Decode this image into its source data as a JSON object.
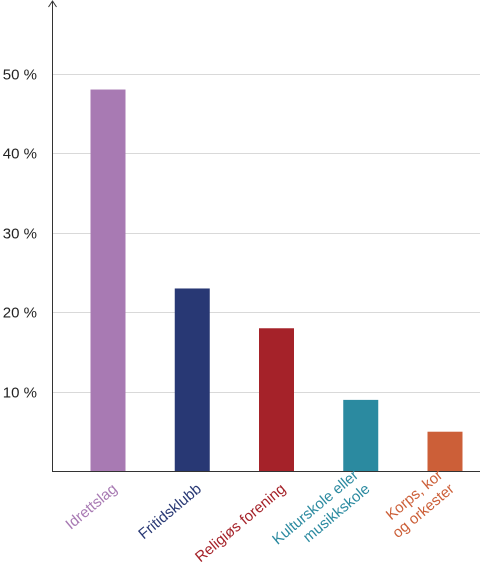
{
  "chart_data": {
    "type": "bar",
    "categories": [
      "Idrettslag",
      "Fritidsklubb",
      "Religiøs forening",
      "Kulturskole eller musikkskole",
      "Korps, kor og orkester"
    ],
    "category_label_lines": [
      [
        "Idrettslag"
      ],
      [
        "Fritidsklubb"
      ],
      [
        "Religiøs forening"
      ],
      [
        "Kulturskole eller",
        "musikkskole"
      ],
      [
        "Korps, kor",
        "og orkester"
      ]
    ],
    "values": [
      48,
      23,
      18,
      9,
      5
    ],
    "colors": [
      "#a87ab3",
      "#283874",
      "#a52229",
      "#2b8aa0",
      "#cc5f38"
    ],
    "ylim": [
      0,
      59
    ],
    "yticks": [
      10,
      20,
      30,
      40,
      50
    ],
    "ytick_labels": [
      "10 %",
      "20 %",
      "30 %",
      "40 %",
      "50 %"
    ],
    "grid": true,
    "title": "",
    "xlabel": "",
    "ylabel": ""
  }
}
